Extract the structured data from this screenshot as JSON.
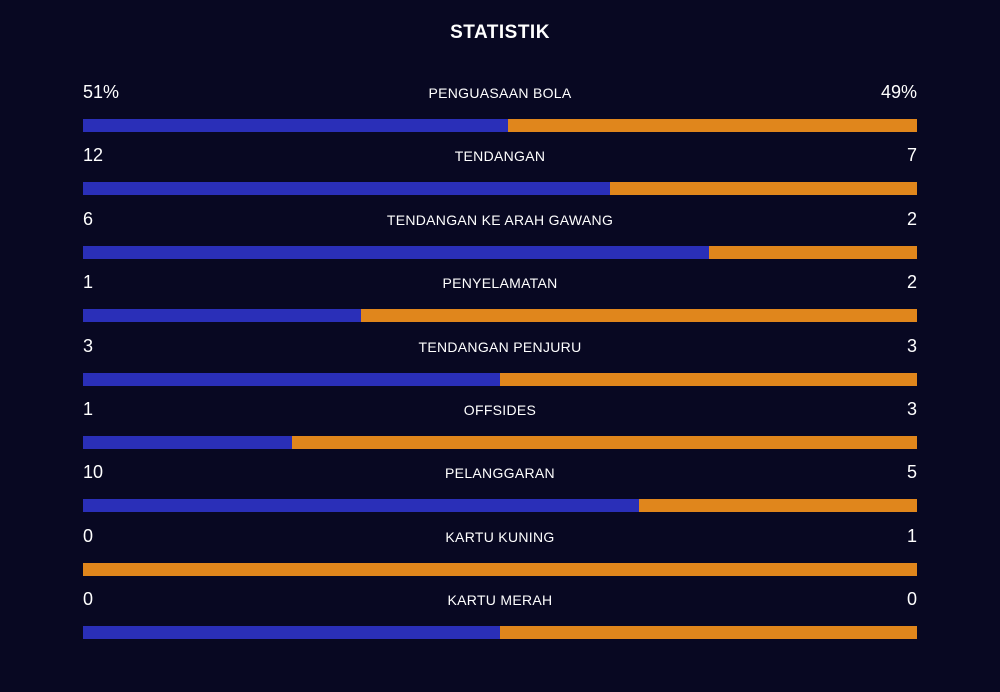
{
  "title": "STATISTIK",
  "colors": {
    "background": "#080822",
    "home": "#2a2fb8",
    "away": "#e0861c"
  },
  "stats": [
    {
      "label": "PENGUASAAN BOLA",
      "home": "51%",
      "away": "49%",
      "home_value": 51,
      "away_value": 49
    },
    {
      "label": "TENDANGAN",
      "home": "12",
      "away": "7",
      "home_value": 12,
      "away_value": 7
    },
    {
      "label": "TENDANGAN KE ARAH GAWANG",
      "home": "6",
      "away": "2",
      "home_value": 6,
      "away_value": 2
    },
    {
      "label": "PENYELAMATAN",
      "home": "1",
      "away": "2",
      "home_value": 1,
      "away_value": 2
    },
    {
      "label": "TENDANGAN PENJURU",
      "home": "3",
      "away": "3",
      "home_value": 3,
      "away_value": 3
    },
    {
      "label": "OFFSIDES",
      "home": "1",
      "away": "3",
      "home_value": 1,
      "away_value": 3
    },
    {
      "label": "PELANGGARAN",
      "home": "10",
      "away": "5",
      "home_value": 10,
      "away_value": 5
    },
    {
      "label": "KARTU KUNING",
      "home": "0",
      "away": "1",
      "home_value": 0,
      "away_value": 1
    },
    {
      "label": "KARTU MERAH",
      "home": "0",
      "away": "0",
      "home_value": 0,
      "away_value": 0
    }
  ]
}
